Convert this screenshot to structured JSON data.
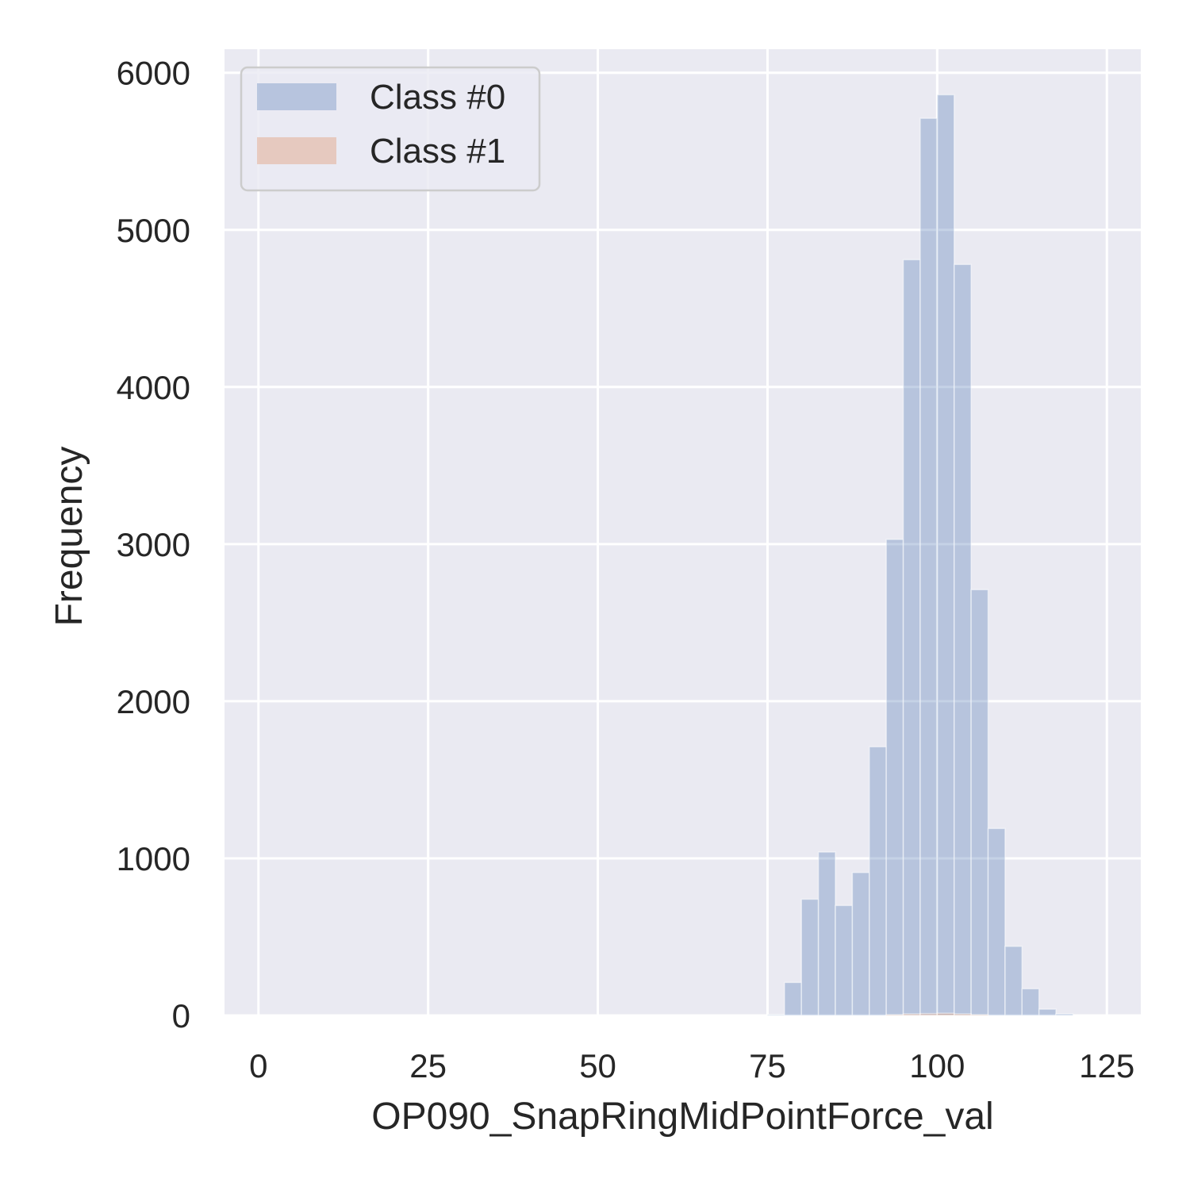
{
  "chart_data": {
    "type": "bar",
    "xlabel": "OP090_SnapRingMidPointForce_val",
    "ylabel": "Frequency",
    "xlim": [
      -5,
      130
    ],
    "ylim": [
      0,
      6150
    ],
    "xticks": [
      0,
      25,
      50,
      75,
      100,
      125
    ],
    "yticks": [
      0,
      1000,
      2000,
      3000,
      4000,
      5000,
      6000
    ],
    "grid": true,
    "legend_position": "top-left",
    "bin_width": 2.5,
    "series": [
      {
        "name": "Class #0",
        "color": "#4c72b0",
        "bins": [
          {
            "x": 75.0,
            "count": 5
          },
          {
            "x": 77.5,
            "count": 210
          },
          {
            "x": 80.0,
            "count": 740
          },
          {
            "x": 82.5,
            "count": 1040
          },
          {
            "x": 85.0,
            "count": 700
          },
          {
            "x": 87.5,
            "count": 910
          },
          {
            "x": 90.0,
            "count": 1710
          },
          {
            "x": 92.5,
            "count": 3030
          },
          {
            "x": 95.0,
            "count": 4810
          },
          {
            "x": 97.5,
            "count": 5710
          },
          {
            "x": 100.0,
            "count": 5860
          },
          {
            "x": 102.5,
            "count": 4780
          },
          {
            "x": 105.0,
            "count": 2710
          },
          {
            "x": 107.5,
            "count": 1190
          },
          {
            "x": 110.0,
            "count": 440
          },
          {
            "x": 112.5,
            "count": 170
          },
          {
            "x": 115.0,
            "count": 40
          },
          {
            "x": 117.5,
            "count": 10
          }
        ]
      },
      {
        "name": "Class #1",
        "color": "#dd8452",
        "bins": [
          {
            "x": 92.5,
            "count": 5
          },
          {
            "x": 95.0,
            "count": 10
          },
          {
            "x": 97.5,
            "count": 12
          },
          {
            "x": 100.0,
            "count": 14
          },
          {
            "x": 102.5,
            "count": 10
          },
          {
            "x": 105.0,
            "count": 5
          }
        ]
      }
    ]
  }
}
